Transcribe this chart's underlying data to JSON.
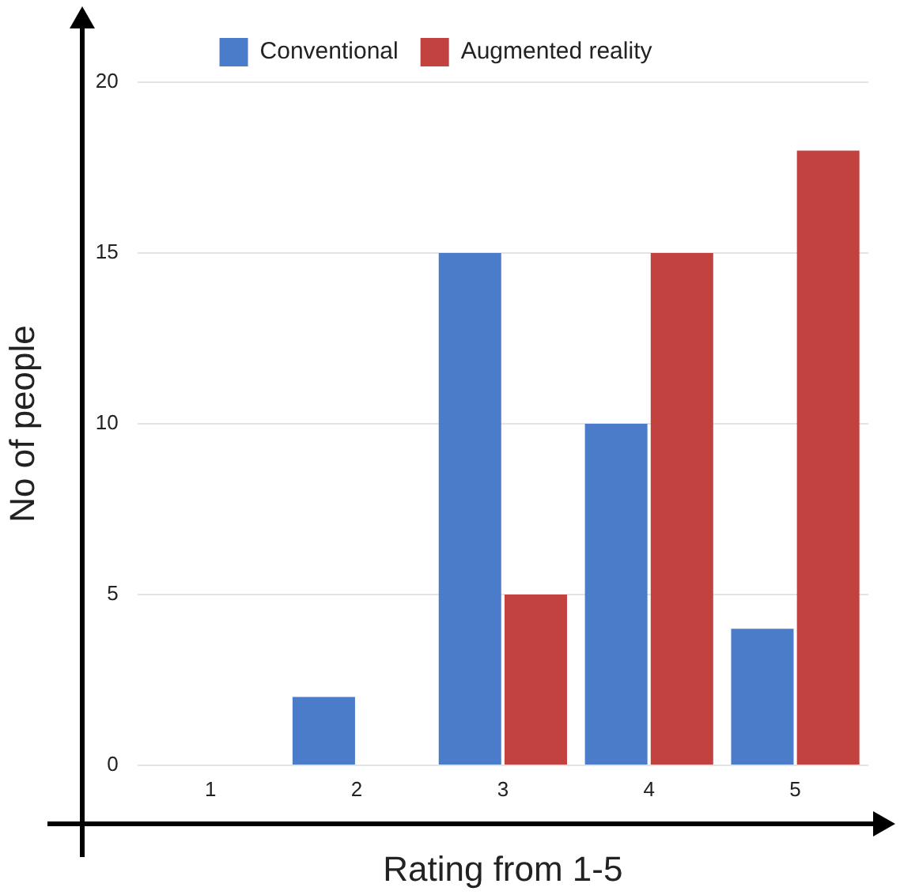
{
  "chart_data": {
    "type": "bar",
    "xlabel": "Rating from 1-5",
    "ylabel": "No of people",
    "categories": [
      "1",
      "2",
      "3",
      "4",
      "5"
    ],
    "series": [
      {
        "name": "Conventional",
        "color": "#4a7cc9",
        "values": [
          0,
          2,
          15,
          10,
          4
        ]
      },
      {
        "name": "Augmented reality",
        "color": "#c1423e",
        "values": [
          0,
          0,
          5,
          15,
          18
        ]
      }
    ],
    "ylim": [
      0,
      20
    ],
    "yticks": [
      0,
      5,
      10,
      15,
      20
    ],
    "grid": "y",
    "legend": "top"
  }
}
